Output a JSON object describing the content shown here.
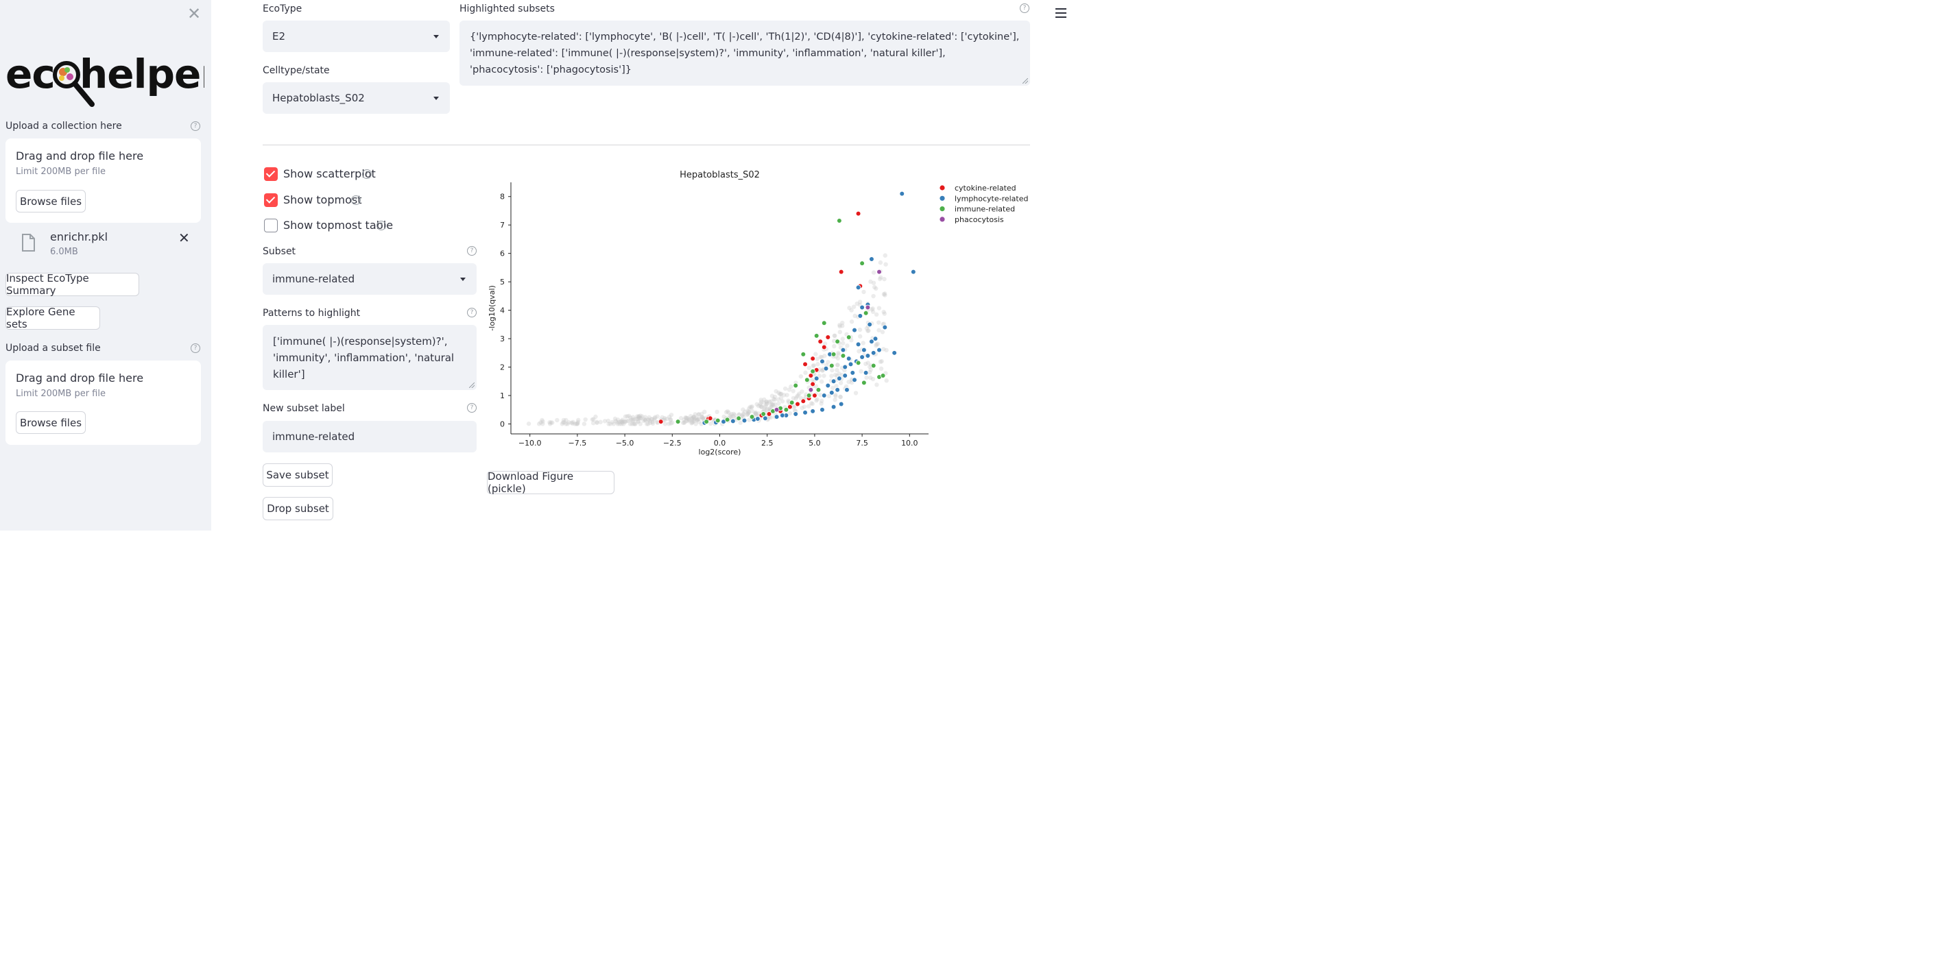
{
  "sidebar": {
    "logo_text": "ecohelper",
    "upload_collection_label": "Upload a collection here",
    "dropzone1": {
      "title": "Drag and drop file here",
      "limit": "Limit 200MB per file",
      "browse": "Browse files"
    },
    "file": {
      "name": "enrichr.pkl",
      "size": "6.0MB"
    },
    "inspect_button": "Inspect EcoType Summary",
    "explore_button": "Explore Gene sets",
    "upload_subset_label": "Upload a subset file",
    "dropzone2": {
      "title": "Drag and drop file here",
      "limit": "Limit 200MB per file",
      "browse": "Browse files"
    }
  },
  "main": {
    "ecotype_label": "EcoType",
    "ecotype_value": "E2",
    "celltype_label": "Celltype/state",
    "celltype_value": "Hepatoblasts_S02",
    "highlighted_label": "Highlighted subsets",
    "highlighted_value": "{'lymphocyte-related': ['lymphocyte', 'B( |-)cell', 'T( |-)cell', 'Th(1|2)', 'CD(4|8)'], 'cytokine-related': ['cytokine'], 'immune-related': ['immune( |-)(response|system)?', 'immunity', 'inflammation', 'natural killer'], 'phacocytosis': ['phagocytosis']}",
    "show_scatterplot": {
      "label": "Show scatterplot",
      "checked": true
    },
    "show_topmost": {
      "label": "Show topmost",
      "checked": true
    },
    "show_topmost_table": {
      "label": "Show topmost table",
      "checked": false
    },
    "subset_label": "Subset",
    "subset_value": "immune-related",
    "patterns_label": "Patterns to highlight",
    "patterns_value": "['immune( |-)(response|system)?', 'immunity', 'inflammation', 'natural killer']",
    "new_subset_label": "New subset label",
    "new_subset_value": "immune-related",
    "save_button": "Save subset",
    "drop_button": "Drop subset",
    "download_button": "Download Figure (pickle)"
  },
  "colors": {
    "accent": "#ff4b4b",
    "cytokine": "#e41a1c",
    "lymphocyte": "#377eb8",
    "immune": "#4daf4a",
    "phacocytosis": "#984ea3",
    "background": "#d3d3d3"
  },
  "chart_data": {
    "type": "scatter",
    "title": "Hepatoblasts_S02",
    "xlabel": "log2(score)",
    "ylabel": "-log10(qval)",
    "xlim": [
      -11,
      11
    ],
    "ylim": [
      -0.35,
      8.5
    ],
    "xticks": [
      -10.0,
      -7.5,
      -5.0,
      -2.5,
      0.0,
      2.5,
      5.0,
      7.5,
      10.0
    ],
    "xtick_labels": [
      "−10.0",
      "−7.5",
      "−5.0",
      "−2.5",
      "0.0",
      "2.5",
      "5.0",
      "7.5",
      "10.0"
    ],
    "yticks": [
      0,
      1,
      2,
      3,
      4,
      5,
      6,
      7,
      8
    ],
    "legend_position": "top-right",
    "series": [
      {
        "name": "cytokine-related",
        "color": "#e41a1c",
        "points": [
          [
            -3.1,
            0.08
          ],
          [
            -0.6,
            0.18
          ],
          [
            -0.5,
            0.2
          ],
          [
            2.2,
            0.3
          ],
          [
            2.6,
            0.35
          ],
          [
            3.2,
            0.45
          ],
          [
            3.7,
            0.6
          ],
          [
            4.1,
            0.7
          ],
          [
            4.4,
            0.8
          ],
          [
            4.7,
            0.9
          ],
          [
            5.0,
            1.0
          ],
          [
            4.9,
            1.4
          ],
          [
            4.8,
            1.7
          ],
          [
            5.1,
            1.9
          ],
          [
            4.5,
            2.1
          ],
          [
            4.9,
            2.3
          ],
          [
            5.5,
            2.7
          ],
          [
            5.3,
            2.9
          ],
          [
            5.7,
            3.05
          ],
          [
            6.4,
            5.35
          ],
          [
            7.3,
            7.4
          ],
          [
            7.4,
            4.85
          ],
          [
            5.2,
            1.2
          ]
        ]
      },
      {
        "name": "lymphocyte-related",
        "color": "#377eb8",
        "points": [
          [
            9.6,
            8.1
          ],
          [
            10.2,
            5.35
          ],
          [
            8.0,
            5.8
          ],
          [
            9.2,
            2.5
          ],
          [
            8.7,
            3.4
          ],
          [
            7.8,
            4.2
          ],
          [
            7.5,
            4.1
          ],
          [
            7.3,
            4.8
          ],
          [
            7.4,
            3.8
          ],
          [
            7.9,
            3.5
          ],
          [
            7.1,
            3.3
          ],
          [
            8.2,
            3.0
          ],
          [
            8.0,
            2.9
          ],
          [
            8.4,
            2.6
          ],
          [
            8.1,
            2.5
          ],
          [
            7.8,
            2.4
          ],
          [
            7.5,
            2.35
          ],
          [
            7.2,
            2.2
          ],
          [
            6.9,
            2.1
          ],
          [
            6.6,
            2.0
          ],
          [
            7.6,
            2.6
          ],
          [
            7.3,
            2.8
          ],
          [
            6.5,
            2.6
          ],
          [
            6.8,
            2.3
          ],
          [
            7.0,
            1.8
          ],
          [
            6.6,
            1.7
          ],
          [
            6.3,
            1.6
          ],
          [
            6.0,
            1.5
          ],
          [
            5.7,
            1.35
          ],
          [
            6.2,
            1.2
          ],
          [
            5.9,
            1.1
          ],
          [
            5.5,
            1.0
          ],
          [
            6.4,
            0.7
          ],
          [
            6.0,
            0.6
          ],
          [
            5.4,
            0.5
          ],
          [
            4.9,
            0.45
          ],
          [
            4.5,
            0.4
          ],
          [
            4.0,
            0.35
          ],
          [
            3.5,
            0.3
          ],
          [
            3.0,
            0.25
          ],
          [
            2.4,
            0.2
          ],
          [
            1.8,
            0.15
          ],
          [
            1.3,
            0.12
          ],
          [
            0.7,
            0.1
          ],
          [
            0.2,
            0.08
          ],
          [
            -0.2,
            0.05
          ],
          [
            -0.8,
            0.04
          ],
          [
            2.0,
            0.18
          ],
          [
            3.3,
            0.3
          ],
          [
            5.1,
            1.6
          ],
          [
            5.4,
            2.2
          ],
          [
            5.8,
            2.45
          ],
          [
            7.7,
            1.8
          ],
          [
            7.1,
            1.55
          ],
          [
            6.7,
            1.2
          ],
          [
            5.6,
            1.95
          ]
        ]
      },
      {
        "name": "immune-related",
        "color": "#4daf4a",
        "points": [
          [
            6.3,
            7.15
          ],
          [
            7.5,
            5.65
          ],
          [
            7.7,
            3.9
          ],
          [
            5.5,
            3.55
          ],
          [
            5.1,
            3.1
          ],
          [
            6.2,
            2.9
          ],
          [
            6.0,
            2.45
          ],
          [
            4.4,
            2.45
          ],
          [
            6.8,
            3.05
          ],
          [
            7.3,
            2.15
          ],
          [
            5.9,
            2.05
          ],
          [
            4.9,
            1.85
          ],
          [
            4.6,
            1.55
          ],
          [
            4.0,
            1.35
          ],
          [
            7.6,
            1.45
          ],
          [
            8.4,
            1.65
          ],
          [
            8.6,
            1.7
          ],
          [
            5.2,
            1.2
          ],
          [
            4.7,
            1.0
          ],
          [
            3.8,
            0.75
          ],
          [
            3.2,
            0.55
          ],
          [
            2.8,
            0.45
          ],
          [
            2.3,
            0.35
          ],
          [
            1.7,
            0.25
          ],
          [
            1.0,
            0.2
          ],
          [
            0.4,
            0.15
          ],
          [
            -0.1,
            0.12
          ],
          [
            -0.7,
            0.08
          ],
          [
            -2.2,
            0.08
          ],
          [
            3.5,
            0.5
          ],
          [
            6.5,
            2.4
          ],
          [
            8.1,
            2.05
          ]
        ]
      },
      {
        "name": "phacocytosis",
        "color": "#984ea3",
        "points": [
          [
            8.4,
            5.35
          ],
          [
            7.8,
            4.1
          ],
          [
            4.8,
            1.2
          ],
          [
            3.0,
            0.5
          ]
        ]
      }
    ]
  }
}
